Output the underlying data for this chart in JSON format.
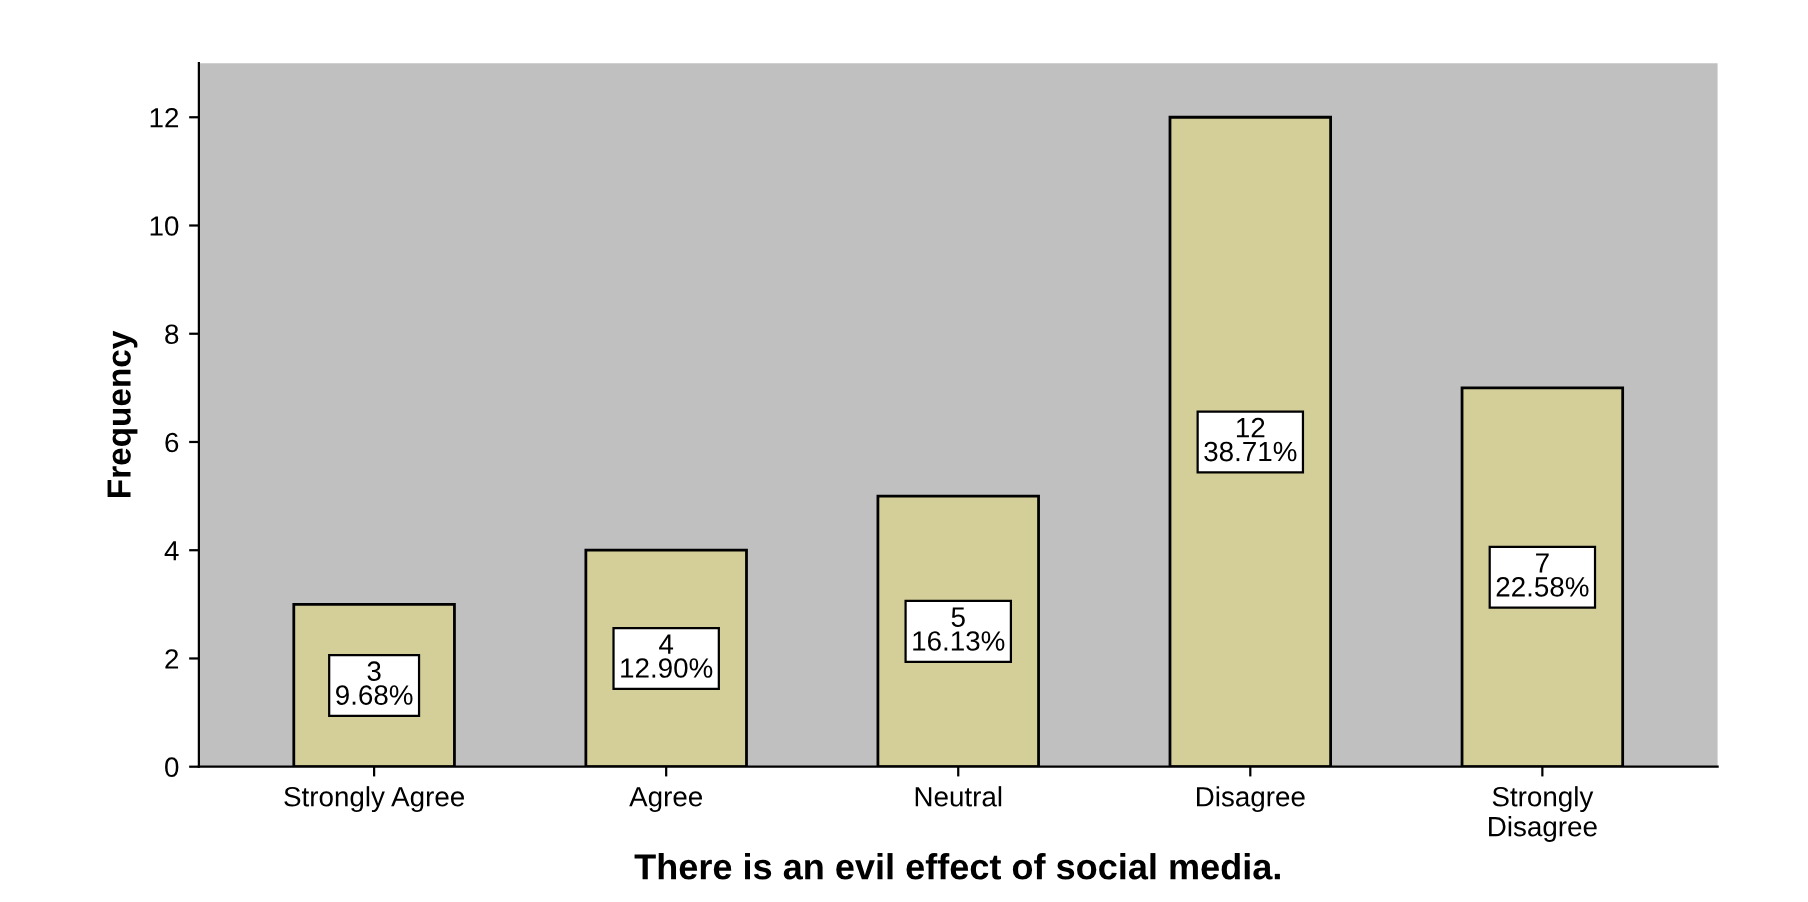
{
  "chart_data": {
    "type": "bar",
    "xlabel": "There is an evil effect of social media.",
    "ylabel": "Frequency",
    "categories": [
      "Strongly Agree",
      "Agree",
      "Neutral",
      "Disagree",
      "Strongly\nDisagree"
    ],
    "values": [
      3,
      4,
      5,
      12,
      7
    ],
    "value_labels": [
      "3\n9.68%",
      "4\n12.90%",
      "5\n16.13%",
      "12\n38.71%",
      "7\n22.58%"
    ],
    "color": "#d4cf99",
    "ylim": [
      0,
      13
    ],
    "yticks": [
      0,
      2,
      4,
      6,
      8,
      10,
      12
    ],
    "grid": false
  }
}
